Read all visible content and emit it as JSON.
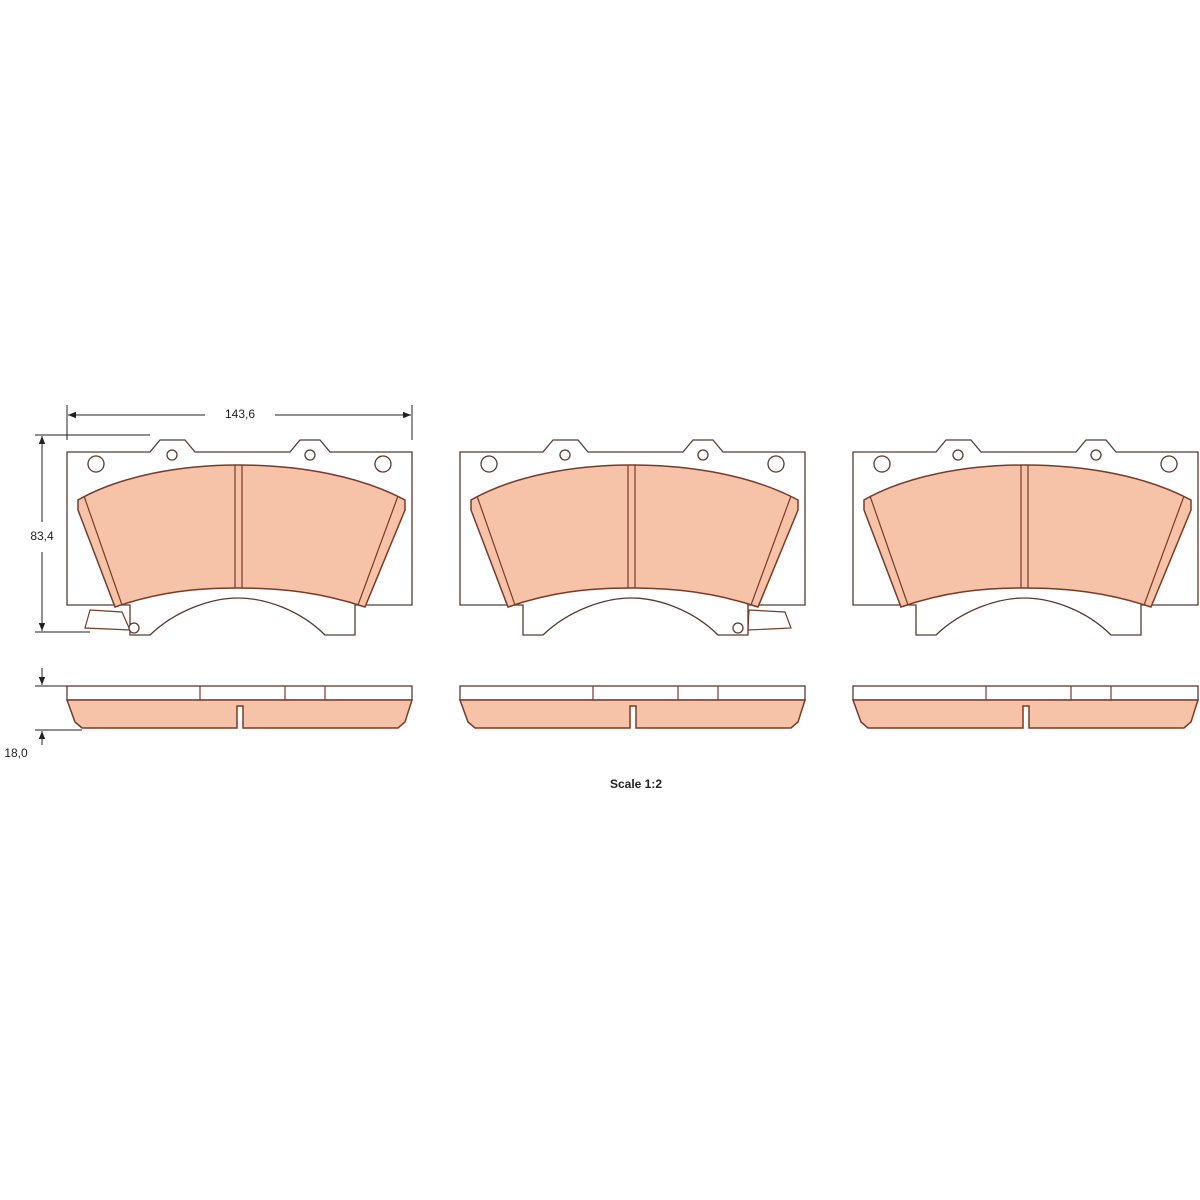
{
  "dimensions": {
    "width": "143,6",
    "height": "83,4",
    "thickness": "18,0"
  },
  "scale": "Scale 1:2"
}
